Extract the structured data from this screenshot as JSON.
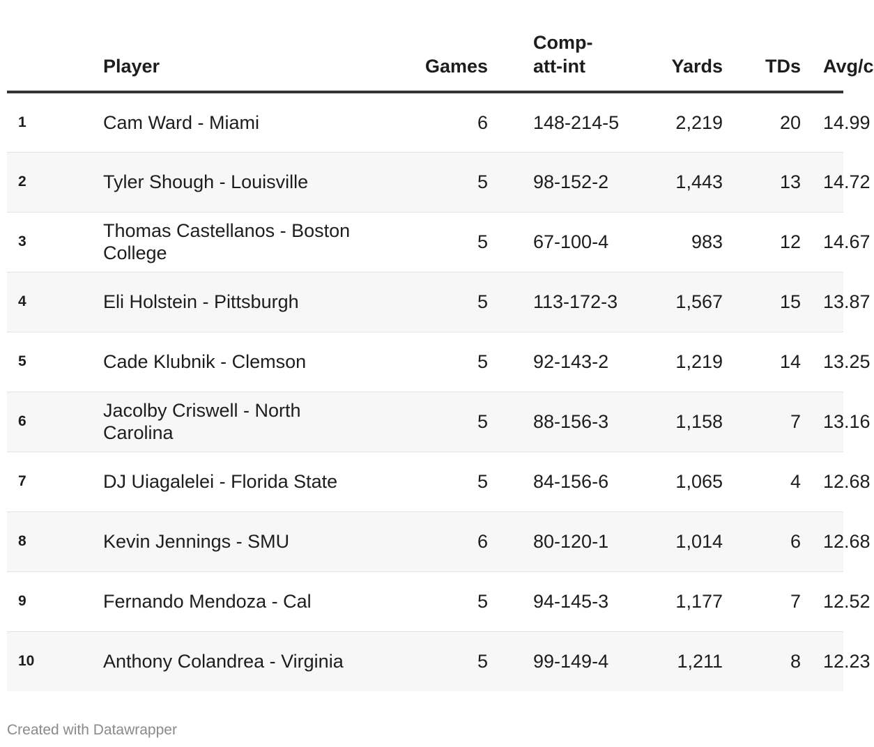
{
  "chart_data": {
    "type": "table",
    "columns": {
      "rank": "",
      "player": "Player",
      "games": "Games",
      "comp": "Comp-att-int",
      "yards": "Yards",
      "tds": "TDs",
      "avg": "Avg/c"
    },
    "rows": [
      {
        "rank": "1",
        "player": "Cam Ward - Miami",
        "games": "6",
        "comp": "148-214-5",
        "yards": "2,219",
        "tds": "20",
        "avg": "14.99"
      },
      {
        "rank": "2",
        "player": "Tyler Shough - Louisville",
        "games": "5",
        "comp": "98-152-2",
        "yards": "1,443",
        "tds": "13",
        "avg": "14.72"
      },
      {
        "rank": "3",
        "player": "Thomas Castellanos - Boston College",
        "games": "5",
        "comp": "67-100-4",
        "yards": "983",
        "tds": "12",
        "avg": "14.67"
      },
      {
        "rank": "4",
        "player": "Eli Holstein - Pittsburgh",
        "games": "5",
        "comp": "113-172-3",
        "yards": "1,567",
        "tds": "15",
        "avg": "13.87"
      },
      {
        "rank": "5",
        "player": "Cade Klubnik - Clemson",
        "games": "5",
        "comp": "92-143-2",
        "yards": "1,219",
        "tds": "14",
        "avg": "13.25"
      },
      {
        "rank": "6",
        "player": "Jacolby Criswell - North Carolina",
        "games": "5",
        "comp": "88-156-3",
        "yards": "1,158",
        "tds": "7",
        "avg": "13.16"
      },
      {
        "rank": "7",
        "player": "DJ Uiagalelei - Florida State",
        "games": "5",
        "comp": "84-156-6",
        "yards": "1,065",
        "tds": "4",
        "avg": "12.68"
      },
      {
        "rank": "8",
        "player": "Kevin Jennings - SMU",
        "games": "6",
        "comp": "80-120-1",
        "yards": "1,014",
        "tds": "6",
        "avg": "12.68"
      },
      {
        "rank": "9",
        "player": "Fernando Mendoza - Cal",
        "games": "5",
        "comp": "94-145-3",
        "yards": "1,177",
        "tds": "7",
        "avg": "12.52"
      },
      {
        "rank": "10",
        "player": "Anthony Colandrea - Virginia",
        "games": "5",
        "comp": "99-149-4",
        "yards": "1,211",
        "tds": "8",
        "avg": "12.23"
      }
    ]
  },
  "footer": {
    "credit": "Created with Datawrapper"
  }
}
